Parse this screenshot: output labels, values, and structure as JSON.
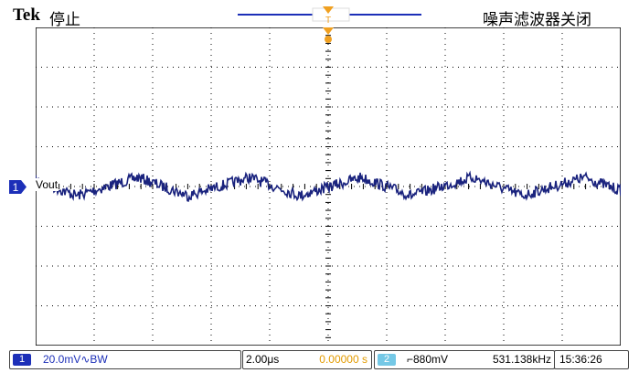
{
  "header": {
    "brand": "Tek",
    "status": "停止",
    "filter": "噪声滤波器关闭",
    "trigger_marker_label": "T"
  },
  "channel1": {
    "number": "1",
    "trace_label": "Vout",
    "scale": "20.0mV∿BW",
    "color": "#1a237e"
  },
  "timebase": {
    "scale": "2.00μs",
    "position": "0.00000 s"
  },
  "trigger": {
    "source": "2",
    "slope_level": "⌐880mV",
    "frequency": "531.138kHz"
  },
  "clock": "15:36:26",
  "colors": {
    "trace": "#1a237e",
    "grid": "#000000",
    "trigger_marker": "#f0a020",
    "ch1": "#1c2fb8",
    "ch2": "#74c8e6",
    "timebase_position": "#e39b00"
  }
}
